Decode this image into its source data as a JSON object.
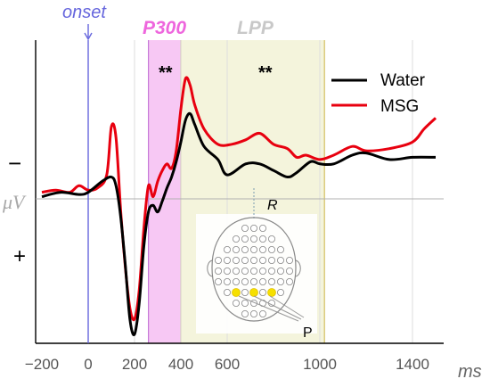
{
  "chart_data": {
    "type": "line",
    "title": "",
    "xlabel": "ms",
    "ylabel": "μV",
    "xlim": [
      -200,
      1500
    ],
    "xticks": [
      -200,
      0,
      200,
      400,
      600,
      1000,
      1400
    ],
    "polarity_labels": {
      "negative": "−",
      "positive": "+"
    },
    "onset": {
      "label": "onset",
      "x": 0,
      "color": "#6666dd"
    },
    "windows": [
      {
        "label": "P300",
        "start": 260,
        "end": 400,
        "color": "#f7c8f4",
        "edge": "#c67ad8",
        "label_color": "#ee66dd",
        "significance": "**"
      },
      {
        "label": "LPP",
        "start": 400,
        "end": 1020,
        "color": "#f4f4dc",
        "edge": "#d4c060",
        "label_color": "#c8c8c8",
        "significance": "**"
      }
    ],
    "legend": {
      "position": "top-right"
    },
    "series": [
      {
        "name": "Water",
        "color": "#000000",
        "x": [
          -200,
          -120,
          -40,
          0,
          60,
          100,
          120,
          140,
          160,
          180,
          200,
          220,
          240,
          260,
          280,
          300,
          320,
          340,
          360,
          380,
          400,
          420,
          440,
          460,
          500,
          560,
          600,
          680,
          740,
          800,
          860,
          900,
          960,
          1000,
          1060,
          1140,
          1200,
          1300,
          1400,
          1500
        ],
        "y": [
          -0.1,
          -0.3,
          -0.2,
          -0.3,
          -0.8,
          -1.0,
          -0.6,
          0.8,
          3.0,
          5.5,
          6.2,
          4.8,
          2.2,
          0.6,
          0.3,
          0.6,
          0.1,
          -0.5,
          -1.0,
          -1.7,
          -2.6,
          -3.6,
          -3.9,
          -3.4,
          -2.4,
          -1.8,
          -1.1,
          -1.6,
          -1.6,
          -1.3,
          -1.0,
          -1.2,
          -1.7,
          -1.6,
          -1.6,
          -2.0,
          -2.1,
          -1.8,
          -1.9,
          -1.9
        ]
      },
      {
        "name": "MSG",
        "color": "#e8000f",
        "x": [
          -200,
          -140,
          -80,
          -40,
          0,
          40,
          80,
          100,
          120,
          140,
          160,
          180,
          200,
          220,
          240,
          260,
          280,
          300,
          320,
          340,
          360,
          380,
          400,
          420,
          440,
          460,
          500,
          560,
          620,
          680,
          740,
          800,
          860,
          900,
          940,
          1000,
          1060,
          1140,
          1200,
          1300,
          1400,
          1450,
          1500
        ],
        "y": [
          -0.3,
          -0.4,
          -0.3,
          -0.6,
          -0.4,
          -0.5,
          -1.1,
          -3.3,
          -2.8,
          0.5,
          3.1,
          5.0,
          5.5,
          4.2,
          1.4,
          -0.6,
          -0.1,
          -0.8,
          -1.3,
          -1.6,
          -1.4,
          -2.2,
          -4.1,
          -5.5,
          -5.2,
          -4.3,
          -3.2,
          -2.5,
          -2.5,
          -2.7,
          -3.0,
          -2.5,
          -2.3,
          -1.9,
          -2.0,
          -1.8,
          -2.0,
          -2.4,
          -2.2,
          -2.3,
          -2.6,
          -3.2,
          -3.7
        ]
      }
    ]
  },
  "inset": {
    "top_label": "R",
    "bottom_label": "P"
  }
}
